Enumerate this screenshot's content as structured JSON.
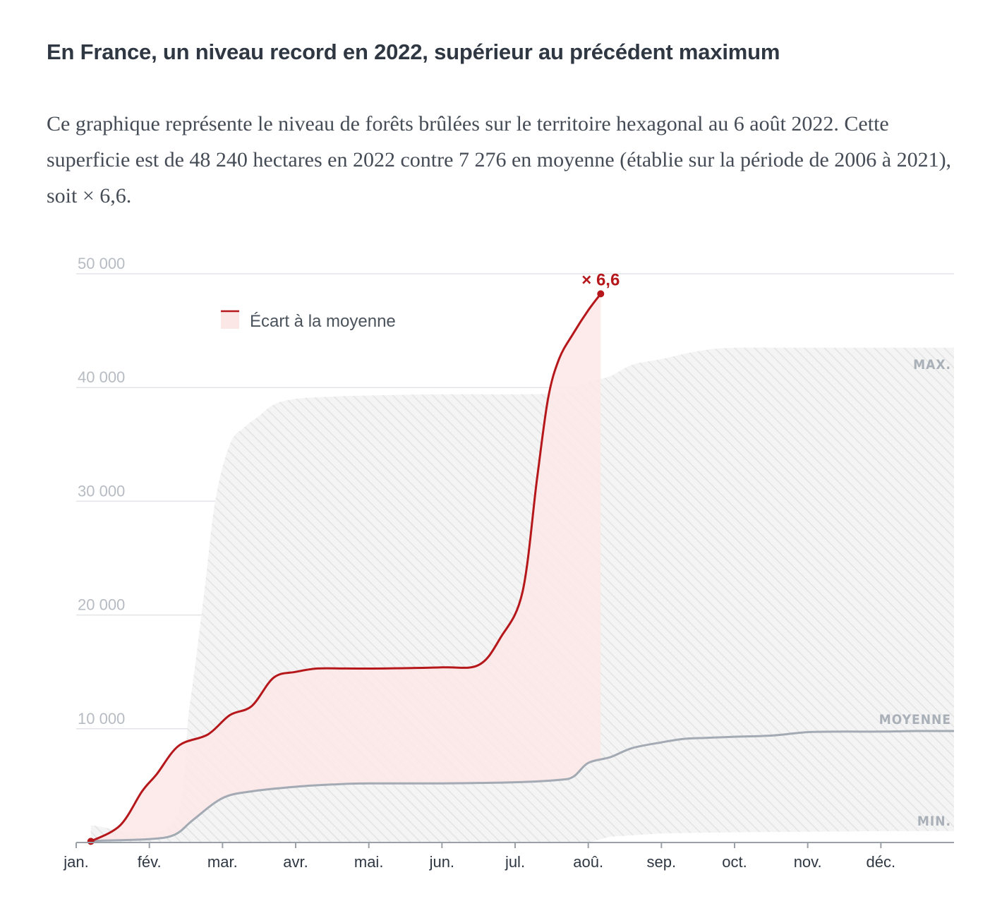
{
  "header": {
    "title": "En France, un niveau record en 2022, supérieur au précédent maximum",
    "subtitle": "Ce graphique représente le niveau de forêts brûlées sur le territoire hexagonal au 6 août 2022. Cette superficie est de 48 240 hectares en 2022 contre 7 276 en moyenne (établie sur la période de 2006 à 2021), soit × 6,6."
  },
  "colors": {
    "series_2022": "#b5171b",
    "average": "#a3aab3",
    "range_fill": "#ececec",
    "gap_fill": "#fbe7e6",
    "grid": "#e2e4e7"
  },
  "chart_data": {
    "type": "area",
    "title": "En France, un niveau record en 2022, supérieur au précédent maximum",
    "ylim": [
      0,
      50000
    ],
    "xlim": [
      0,
      12
    ],
    "y_ticks": [
      10000,
      20000,
      30000,
      40000,
      50000
    ],
    "y_tick_labels": [
      "10 000",
      "20 000",
      "30 000",
      "40 000",
      "50 000"
    ],
    "x_ticks": [
      0,
      1,
      2,
      3,
      4,
      5,
      6,
      7,
      8,
      9,
      10,
      11
    ],
    "x_tick_labels": [
      "jan.",
      "fév.",
      "mar.",
      "avr.",
      "mai.",
      "jun.",
      "jul.",
      "aoû.",
      "sep.",
      "oct.",
      "nov.",
      "déc."
    ],
    "legend": {
      "label": "Écart à la moyenne",
      "position": "top-left"
    },
    "annotation": {
      "label": "× 6,6",
      "x": 7.17,
      "y": 48240
    },
    "band_labels": {
      "max": "MAX.",
      "mean": "MOYENNE",
      "min": "MIN."
    },
    "series": [
      {
        "name": "2022",
        "x": [
          0.2,
          0.6,
          0.9,
          1.1,
          1.4,
          1.8,
          2.1,
          2.4,
          2.7,
          3.0,
          3.3,
          3.7,
          4.2,
          5.0,
          5.5,
          5.8,
          6.1,
          6.3,
          6.45,
          6.6,
          6.8,
          7.0,
          7.17
        ],
        "y": [
          100,
          1500,
          4500,
          6000,
          8500,
          9500,
          11200,
          12000,
          14500,
          15000,
          15300,
          15300,
          15300,
          15400,
          15600,
          18000,
          22000,
          32000,
          39000,
          42500,
          44800,
          46800,
          48240
        ]
      },
      {
        "name": "Moyenne 2006-2021",
        "x": [
          0.2,
          1.0,
          1.35,
          1.6,
          2.0,
          2.4,
          3.0,
          3.5,
          4.0,
          5.0,
          6.0,
          6.6,
          6.8,
          7.0,
          7.3,
          7.6,
          8.0,
          8.3,
          8.6,
          9.0,
          9.5,
          10.0,
          10.5,
          11.0,
          11.5,
          12.0
        ],
        "y": [
          150,
          300,
          700,
          2000,
          3900,
          4500,
          4900,
          5100,
          5200,
          5200,
          5300,
          5500,
          5800,
          7000,
          7500,
          8300,
          8800,
          9100,
          9200,
          9300,
          9400,
          9700,
          9750,
          9750,
          9800,
          9800
        ]
      },
      {
        "name": "Max",
        "x": [
          0.2,
          1.3,
          1.55,
          1.75,
          1.9,
          2.1,
          2.3,
          2.5,
          2.7,
          3.0,
          3.5,
          4.0,
          5.0,
          6.0,
          6.5,
          6.8,
          7.0,
          7.3,
          7.6,
          8.0,
          8.5,
          9.0,
          10.0,
          11.0,
          12.0
        ],
        "y": [
          1500,
          1600,
          12000,
          22000,
          30000,
          35000,
          36500,
          37500,
          38500,
          39000,
          39200,
          39300,
          39400,
          39400,
          39500,
          40000,
          40500,
          41000,
          42000,
          42500,
          43200,
          43500,
          43500,
          43500,
          43500
        ]
      },
      {
        "name": "Min",
        "x": [
          0.2,
          7.0,
          7.3,
          8.0,
          9.0,
          10.0,
          11.0,
          12.0
        ],
        "y": [
          0,
          0,
          500,
          800,
          900,
          950,
          1000,
          1000
        ]
      }
    ]
  }
}
